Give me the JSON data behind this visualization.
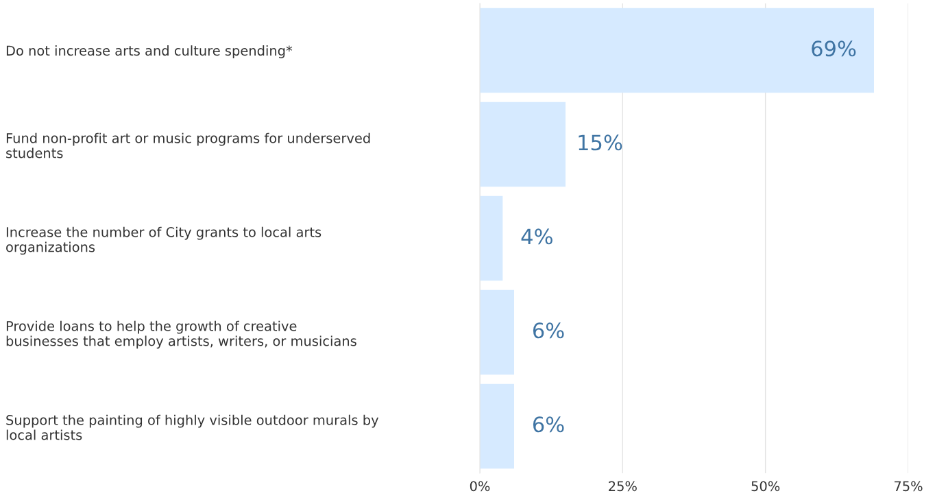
{
  "chart_data": {
    "type": "bar",
    "orientation": "horizontal",
    "categories": [
      "Do not increase arts and culture spending*",
      "Fund non-profit art or music programs for underserved\nstudents",
      "Increase the number of City grants to local arts\norganizations",
      "Provide loans to help the growth of creative\nbusinesses that employ artists, writers, or musicians",
      "Support the painting of highly visible outdoor murals by\nlocal artists"
    ],
    "values": [
      69,
      15,
      4,
      6,
      6
    ],
    "value_labels": [
      "69%",
      "15%",
      "4%",
      "6%",
      "6%"
    ],
    "color": "#d6eaff",
    "xlim": [
      0,
      75
    ],
    "xticks": [
      {
        "value": 0,
        "label": "0%"
      },
      {
        "value": 25,
        "label": "25%"
      },
      {
        "value": 50,
        "label": "50%"
      },
      {
        "value": 75,
        "label": "75%"
      }
    ],
    "grid": "x"
  }
}
